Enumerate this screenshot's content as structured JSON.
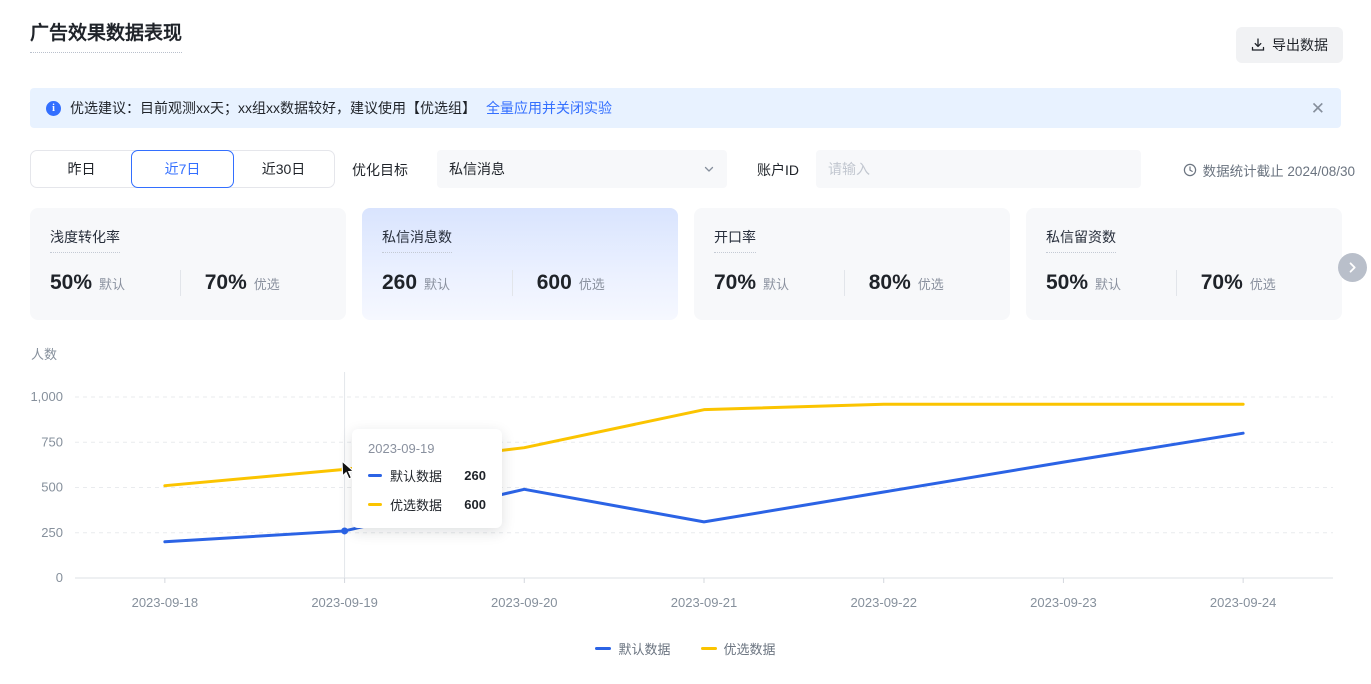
{
  "header": {
    "title": "广告效果数据表现",
    "export_label": "导出数据"
  },
  "banner": {
    "text": "优选建议：目前观测xx天；xx组xx数据较好，建议使用【优选组】",
    "link": "全量应用并关闭实验"
  },
  "filters": {
    "date_tabs": [
      "昨日",
      "近7日",
      "近30日"
    ],
    "active_tab": "近7日",
    "objective_label": "优化目标",
    "objective_value": "私信消息",
    "account_label": "账户ID",
    "account_placeholder": "请输入",
    "stats_deadline": "数据统计截止 2024/08/30"
  },
  "cards": [
    {
      "title": "浅度转化率",
      "default_value": "50%",
      "default_label": "默认",
      "optimized_value": "70%",
      "optimized_label": "优选",
      "selected": false
    },
    {
      "title": "私信消息数",
      "default_value": "260",
      "default_label": "默认",
      "optimized_value": "600",
      "optimized_label": "优选",
      "selected": true
    },
    {
      "title": "开口率",
      "default_value": "70%",
      "default_label": "默认",
      "optimized_value": "80%",
      "optimized_label": "优选",
      "selected": false
    },
    {
      "title": "私信留资数",
      "default_value": "50%",
      "default_label": "默认",
      "optimized_value": "70%",
      "optimized_label": "优选",
      "selected": false
    }
  ],
  "chart_data": {
    "type": "line",
    "ylabel": "人数",
    "categories": [
      "2023-09-18",
      "2023-09-19",
      "2023-09-20",
      "2023-09-21",
      "2023-09-22",
      "2023-09-23",
      "2023-09-24"
    ],
    "series": [
      {
        "name": "默认数据",
        "color": "#2B63E5",
        "values": [
          200,
          260,
          490,
          310,
          475,
          640,
          800
        ]
      },
      {
        "name": "优选数据",
        "color": "#FBC400",
        "values": [
          510,
          600,
          720,
          930,
          960,
          960,
          960
        ]
      }
    ],
    "ylim": [
      0,
      1000
    ],
    "yticks": [
      0,
      250,
      500,
      750,
      1000
    ],
    "ytick_labels": [
      "0",
      "250",
      "500",
      "750",
      "1,000"
    ],
    "grid": "horizontal dashed",
    "legend_position": "bottom",
    "tooltip": {
      "date": "2023-09-19",
      "hover_index": 1,
      "rows": [
        {
          "name": "默认数据",
          "value": "260"
        },
        {
          "name": "优选数据",
          "value": "600"
        }
      ]
    }
  },
  "colors": {
    "accent": "#336FFF",
    "line_default": "#2B63E5",
    "line_optimized": "#FBC400",
    "banner_bg": "#E8F2FF",
    "card_bg": "#F7F8FA"
  }
}
